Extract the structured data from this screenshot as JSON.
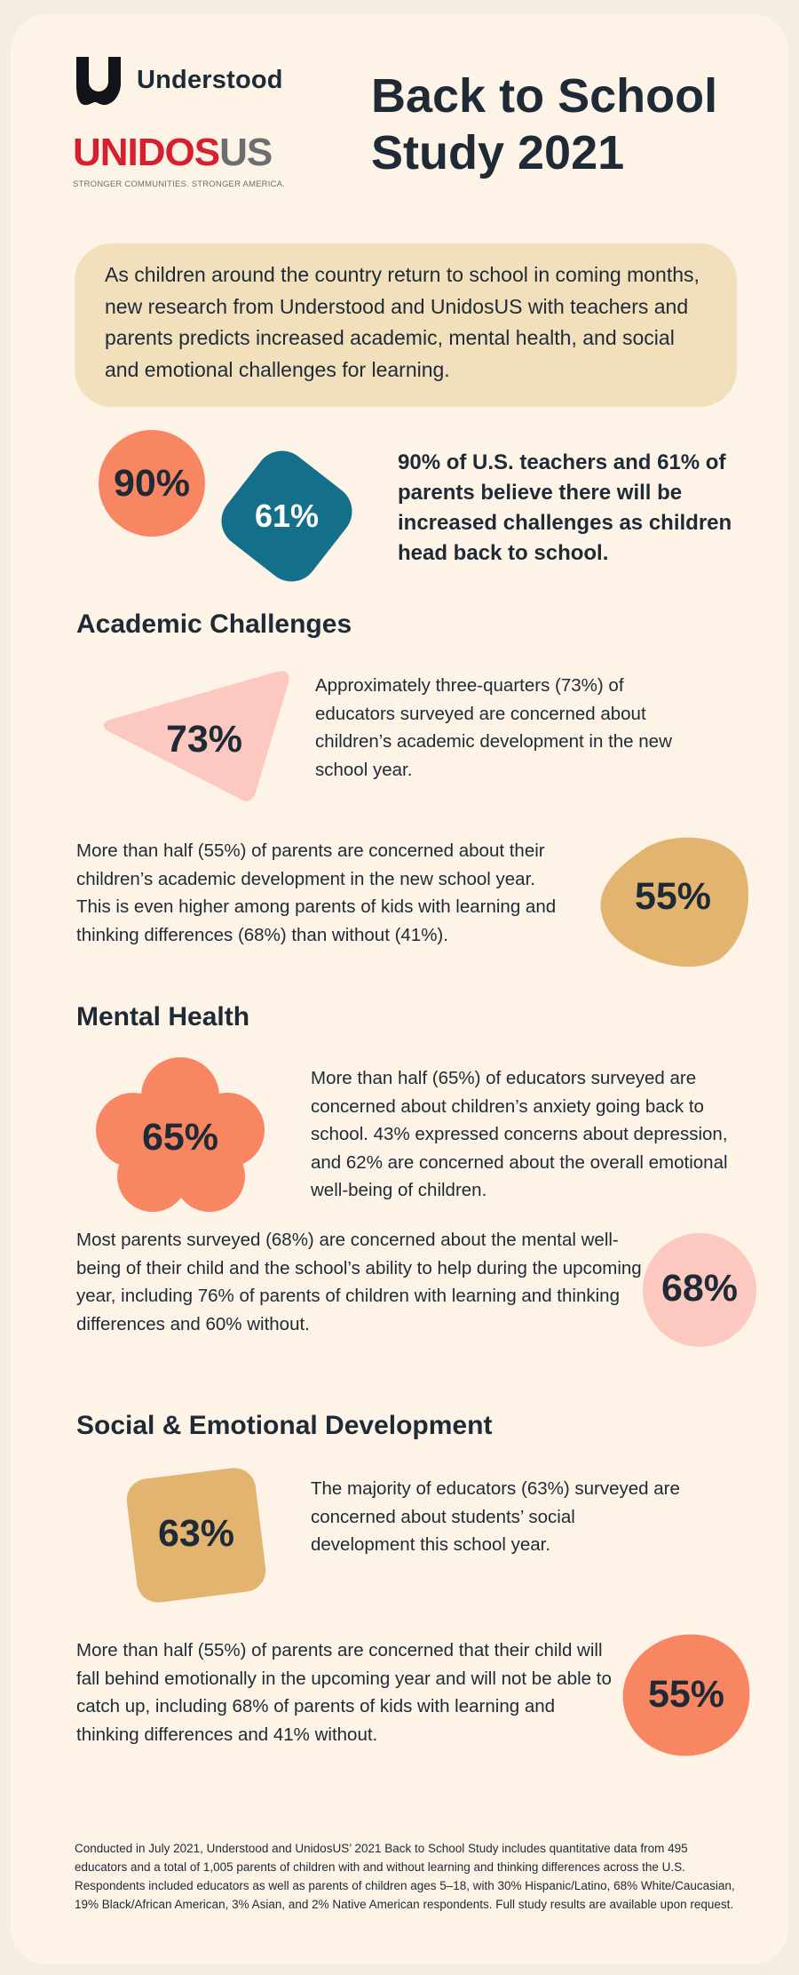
{
  "brand": {
    "understood_name": "Understood",
    "unidos_part1": "UNIDOS",
    "unidos_part2": "US",
    "unidos_tagline": "STRONGER COMMUNITIES. STRONGER AMERICA."
  },
  "title": {
    "line1": "Back to School",
    "line2": "Study 2021"
  },
  "intro": "As children around the country return to school in coming months, new research from Understood and UnidosUS with teachers and parents predicts increased academic, mental health, and social and emotional challenges for learning.",
  "headline": {
    "stat1": "90%",
    "stat2": "61%",
    "text": "90% of U.S. teachers and 61% of parents believe there will be increased challenges as children head back to school."
  },
  "sections": {
    "academic": {
      "heading": "Academic Challenges",
      "stat1": "73%",
      "text1": "Approximately three-quarters (73%) of educators surveyed are concerned about children’s academic development in the new school year.",
      "stat2": "55%",
      "text2": "More than half (55%) of parents are concerned about their children’s academic development in the new school year. This is even higher among parents of kids with learning and thinking differences (68%) than without (41%)."
    },
    "mental": {
      "heading": "Mental Health",
      "stat1": "65%",
      "text1": "More than half (65%) of educators surveyed are concerned about children’s anxiety going back to school. 43% expressed concerns about depression, and 62% are concerned about the overall emotional well-being of children.",
      "stat2": "68%",
      "text2": "Most parents surveyed (68%) are concerned about the mental well-being of their child and the school’s ability to help during the upcoming year, including 76% of parents of children with learning and thinking differences and 60% without."
    },
    "social": {
      "heading": "Social & Emotional Development",
      "stat1": "63%",
      "text1": "The majority of educators (63%) surveyed are concerned about students’ social development this school year.",
      "stat2": "55%",
      "text2": "More than half (55%) of parents are concerned that their child will fall behind emotionally in the upcoming year and will not be able to catch up, including 68% of parents of kids with learning and thinking differences and 41% without."
    }
  },
  "footer": "Conducted in July 2021, Understood and UnidosUS’ 2021 Back to School Study includes quantitative data from 495 educators and a total of 1,005 parents of children with and without learning and thinking differences across the U.S. Respondents included educators as well as parents of children ages 5–18, with 30% Hispanic/Latino, 68% White/Caucasian, 19% Black/African American, 3% Asian, and 2% Native American respondents. Full study results are available upon request.",
  "colors": {
    "coral": "#f98662",
    "teal": "#14708a",
    "pink": "#fcc8c0",
    "tan": "#e2b470",
    "cream": "#fdf3e6",
    "intro_bg": "#f1e0bb",
    "navy_text": "#1e2a36"
  }
}
